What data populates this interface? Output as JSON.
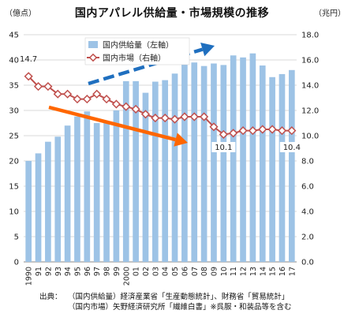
{
  "title": "国内アパレル供給量・市場規模の推移",
  "unit_left": "（億点）",
  "unit_right": "（兆円）",
  "source_lines": [
    "（国内供給量）経済産業省「生産動態統計」、財務省「貿易統計」",
    "（国内市場）矢野経済研究所「繊維白書」※呉服・和装品等を含む"
  ],
  "source_lead": "出典：",
  "colors": {
    "bar": "#9dc3e6",
    "line": "#c0504d",
    "arrow_orange": "#ff6600",
    "arrow_blue": "#1f6fbf"
  },
  "chart_data": {
    "type": "bar",
    "title": "国内アパレル供給量・市場規模の推移",
    "categories": [
      "1990",
      "91",
      "92",
      "93",
      "94",
      "95",
      "96",
      "97",
      "98",
      "99",
      "2000",
      "01",
      "02",
      "03",
      "04",
      "05",
      "06",
      "07",
      "08",
      "09",
      "10",
      "11",
      "12",
      "13",
      "14",
      "15",
      "16",
      "17"
    ],
    "series": [
      {
        "name": "国内供給量（左軸）",
        "type": "bar",
        "axis": "left",
        "values": [
          20.0,
          21.5,
          23.8,
          24.8,
          27.0,
          28.8,
          29.8,
          27.5,
          27.5,
          30.0,
          35.8,
          35.8,
          33.5,
          35.7,
          36.0,
          37.3,
          39.5,
          39.5,
          38.8,
          39.3,
          39.0,
          40.9,
          40.5,
          41.3,
          38.9,
          36.6,
          37.2,
          38.0
        ]
      },
      {
        "name": "国内市場（右軸）",
        "type": "line",
        "axis": "right",
        "values": [
          14.7,
          13.9,
          13.9,
          13.3,
          13.3,
          12.9,
          12.9,
          13.3,
          12.9,
          12.5,
          12.3,
          12.1,
          11.7,
          11.4,
          11.4,
          11.3,
          11.5,
          11.5,
          11.5,
          10.7,
          10.1,
          10.2,
          10.4,
          10.4,
          10.5,
          10.5,
          10.4,
          10.4
        ]
      }
    ],
    "ylim_left": [
      0,
      45
    ],
    "yticks_left": [
      "0",
      "5",
      "10",
      "15",
      "20",
      "25",
      "30",
      "35",
      "40",
      "45"
    ],
    "ylim_right": [
      0,
      18
    ],
    "yticks_right": [
      "0.0",
      "2.0",
      "4.0",
      "6.0",
      "8.0",
      "10.0",
      "12.0",
      "14.0",
      "16.0",
      "18.0"
    ],
    "annotations": [
      "14.7",
      "10.1",
      "10.4"
    ],
    "legend_position": "top-center",
    "grid": true
  }
}
